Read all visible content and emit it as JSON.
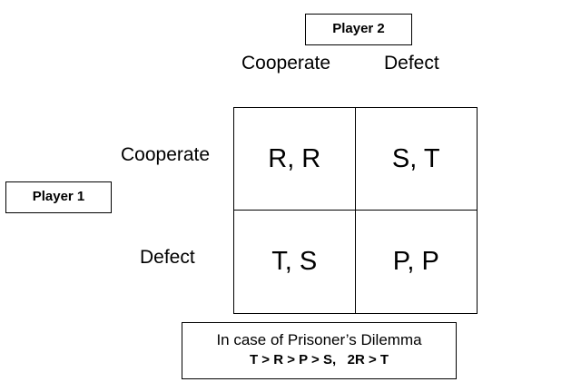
{
  "players": {
    "player2": "Player 2",
    "player1": "Player 1"
  },
  "columns": [
    "Cooperate",
    "Defect"
  ],
  "rows": [
    "Cooperate",
    "Defect"
  ],
  "payoffs": [
    [
      "R, R",
      "S, T"
    ],
    [
      "T, S",
      "P, P"
    ]
  ],
  "note": {
    "line1": "In case of Prisoner’s Dilemma",
    "line2": "T > R > P > S,   2R > T"
  }
}
